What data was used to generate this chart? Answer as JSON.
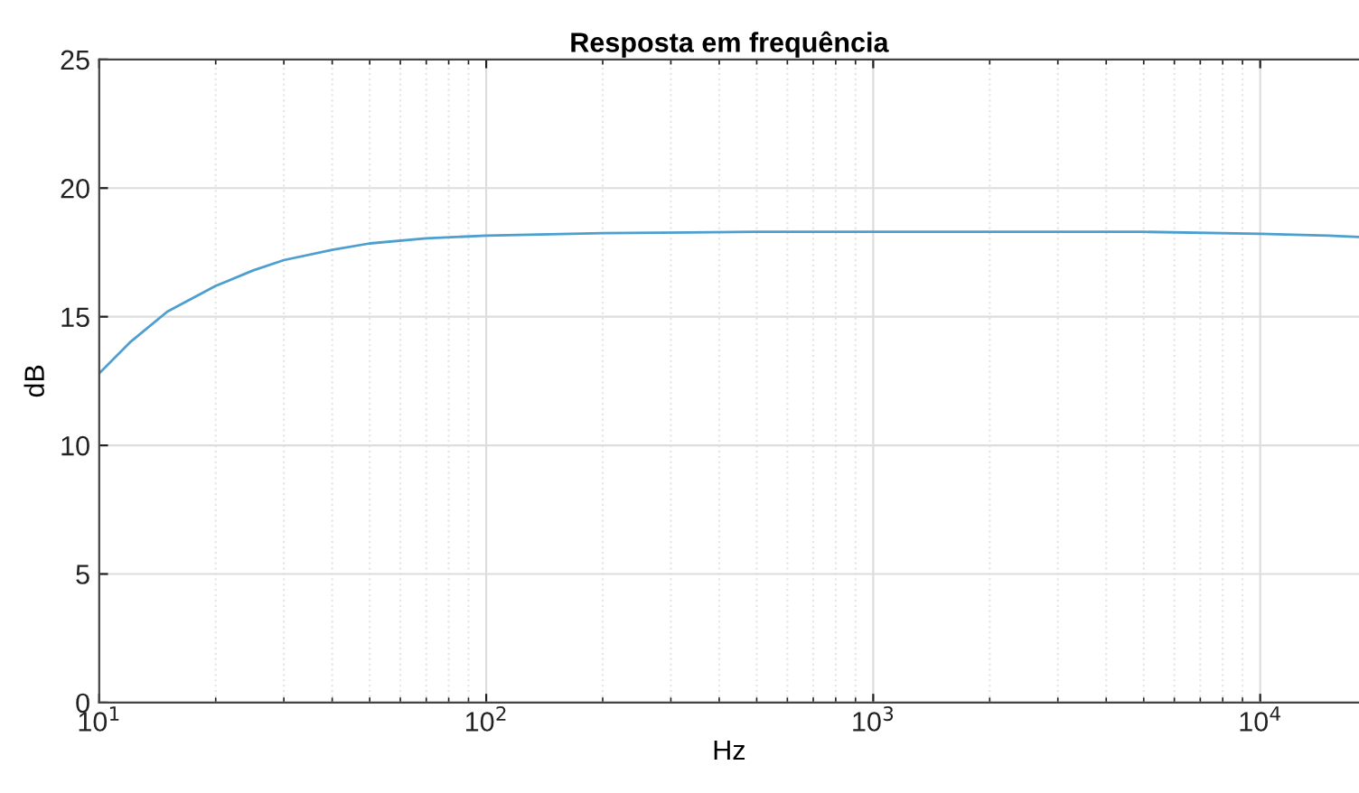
{
  "chart_data": {
    "type": "line",
    "title": "Resposta em frequência",
    "xlabel": "Hz",
    "ylabel": "dB",
    "log": "x",
    "x": [
      10,
      12,
      15,
      20,
      25,
      30,
      40,
      50,
      70,
      100,
      200,
      500,
      1000,
      5000,
      10000,
      15000,
      18000
    ],
    "series": [
      {
        "color": "#4d9fd0",
        "values": [
          12.8,
          14.0,
          15.2,
          16.2,
          16.8,
          17.2,
          17.6,
          17.85,
          18.05,
          18.15,
          18.25,
          18.3,
          18.3,
          18.3,
          18.22,
          18.15,
          18.1
        ]
      }
    ],
    "xlim": [
      10,
      18000
    ],
    "ylim": [
      0,
      25
    ],
    "xticks": [
      {
        "value": 10,
        "label": "10$^{1}$"
      },
      {
        "value": 100,
        "label": "10$^{2}$"
      },
      {
        "value": 1000,
        "label": "10$^{3}$"
      },
      {
        "value": 10000,
        "label": "10$^{4}$"
      }
    ],
    "yticks": [
      0,
      5,
      10,
      15,
      20,
      25
    ],
    "grid": true,
    "marker": "none",
    "line_style": "solid"
  }
}
